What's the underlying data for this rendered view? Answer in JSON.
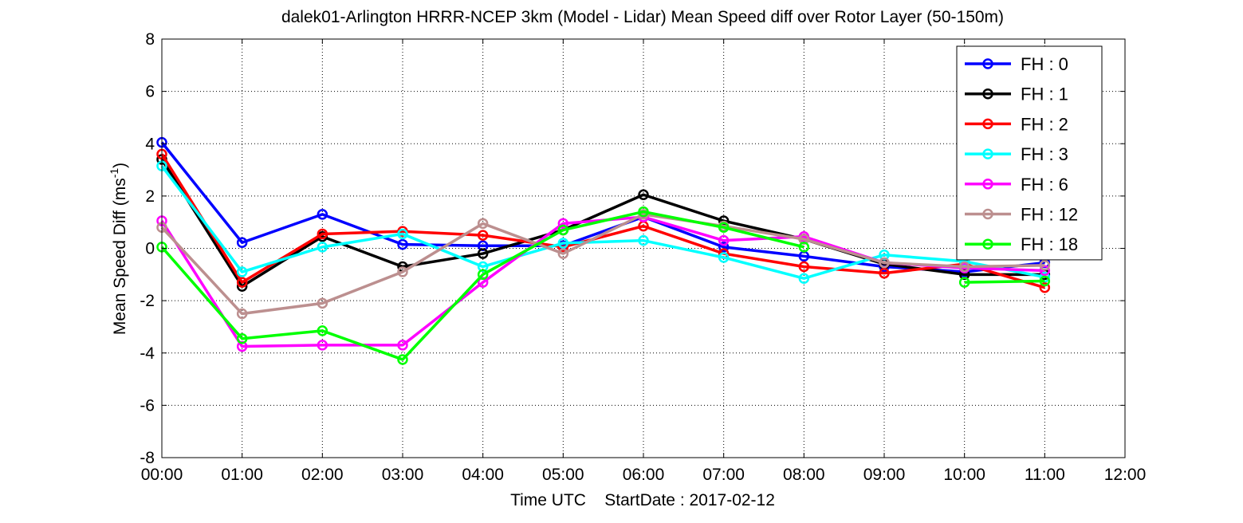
{
  "chart_data": {
    "type": "line",
    "title": "dalek01-Arlington HRRR-NCEP 3km (Model - Lidar) Mean Speed diff over Rotor Layer (50-150m)",
    "xlabel": "Time UTC    StartDate : 2017-02-12",
    "ylabel": {
      "main": "Mean Speed Diff (ms",
      "superscript": "-1",
      "close": ")"
    },
    "x_ticks": [
      "00:00",
      "01:00",
      "02:00",
      "03:00",
      "04:00",
      "05:00",
      "06:00",
      "07:00",
      "08:00",
      "09:00",
      "10:00",
      "11:00",
      "12:00"
    ],
    "y_ticks": [
      "-8",
      "-6",
      "-4",
      "-2",
      "0",
      "2",
      "4",
      "6",
      "8"
    ],
    "xlim": [
      0,
      12
    ],
    "ylim": [
      -8,
      8
    ],
    "grid": true,
    "legend_position": "top-right",
    "x": [
      0,
      1,
      2,
      3,
      4,
      5,
      6,
      7,
      8,
      9,
      10,
      11
    ],
    "series": [
      {
        "name": "FH : 0",
        "color": "#0000ff",
        "values": [
          4.05,
          0.22,
          1.3,
          0.15,
          0.1,
          0.1,
          1.2,
          0.05,
          -0.3,
          -0.7,
          -0.9,
          -0.55
        ]
      },
      {
        "name": "FH : 1",
        "color": "#000000",
        "values": [
          3.4,
          -1.45,
          0.45,
          -0.7,
          -0.2,
          0.7,
          2.05,
          1.05,
          0.35,
          -0.6,
          -1.0,
          -1.0
        ]
      },
      {
        "name": "FH : 2",
        "color": "#ff0000",
        "values": [
          3.6,
          -1.3,
          0.55,
          0.65,
          0.5,
          0.05,
          0.85,
          -0.2,
          -0.7,
          -0.95,
          -0.6,
          -1.5
        ]
      },
      {
        "name": "FH : 3",
        "color": "#00ffff",
        "values": [
          3.15,
          -0.9,
          0.05,
          0.55,
          -0.7,
          0.2,
          0.3,
          -0.35,
          -1.15,
          -0.25,
          -0.5,
          -1.1
        ]
      },
      {
        "name": "FH : 6",
        "color": "#ff00ff",
        "values": [
          1.05,
          -3.75,
          -3.7,
          -3.7,
          -1.3,
          0.95,
          1.2,
          0.3,
          0.45,
          -0.55,
          -0.75,
          -0.85
        ]
      },
      {
        "name": "FH : 12",
        "color": "#bc8f8f",
        "values": [
          0.8,
          -2.5,
          -2.1,
          -0.9,
          0.95,
          -0.2,
          1.3,
          0.85,
          0.35,
          -0.55,
          -0.7,
          -0.65
        ]
      },
      {
        "name": "FH : 18",
        "color": "#00ff00",
        "values": [
          0.05,
          -3.45,
          -3.15,
          -4.25,
          -1.0,
          0.7,
          1.4,
          0.8,
          0.05,
          null,
          -1.3,
          -1.25
        ]
      }
    ]
  }
}
